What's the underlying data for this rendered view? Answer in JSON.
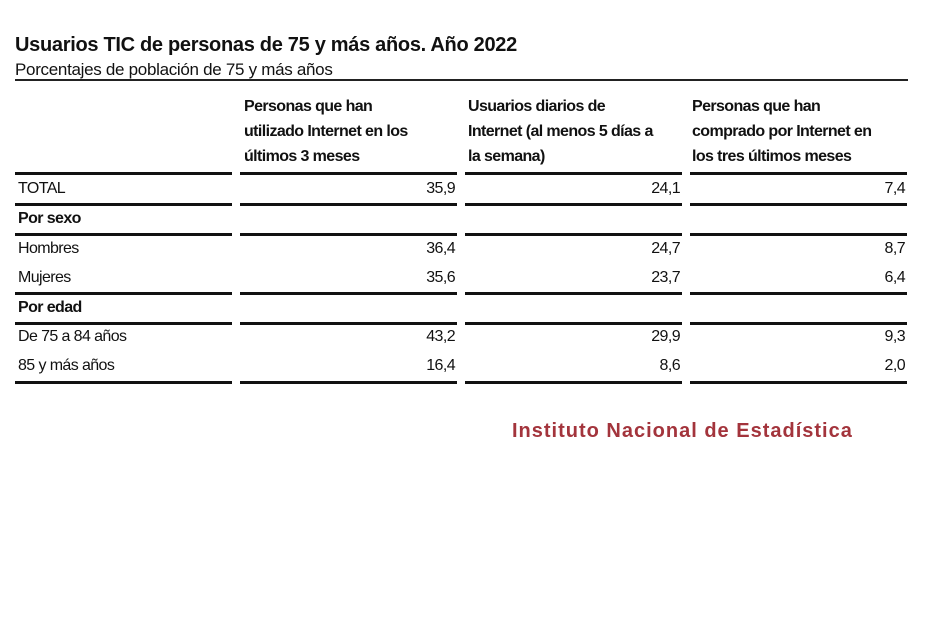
{
  "title": "Usuarios TIC de personas de 75 y más años. Año 2022",
  "subtitle": "Porcentajes de población de 75 y más años",
  "columns": [
    [
      "Personas que han",
      "utilizado Internet en los",
      "últimos 3 meses"
    ],
    [
      "Usuarios diarios de",
      "Internet (al menos 5 días a",
      "la semana)"
    ],
    [
      "Personas que han",
      "comprado por Internet en",
      "los tres últimos meses"
    ]
  ],
  "rows": [
    {
      "label": "TOTAL",
      "values": [
        "35,9",
        "24,1",
        "7,4"
      ]
    },
    {
      "label": "Por sexo",
      "values": []
    },
    {
      "label": "Hombres",
      "values": [
        "36,4",
        "24,7",
        "8,7"
      ]
    },
    {
      "label": "Mujeres",
      "values": [
        "35,6",
        "23,7",
        "6,4"
      ]
    },
    {
      "label": "Por edad",
      "values": []
    },
    {
      "label": "De 75 a 84 años",
      "values": [
        "43,2",
        "29,9",
        "9,3"
      ]
    },
    {
      "label": "85 y más años",
      "values": [
        "16,4",
        "8,6",
        "2,0"
      ]
    }
  ],
  "footer": "Instituto Nacional de Estadística",
  "colors": {
    "footer": "#a3343c",
    "rules": "#111111"
  }
}
